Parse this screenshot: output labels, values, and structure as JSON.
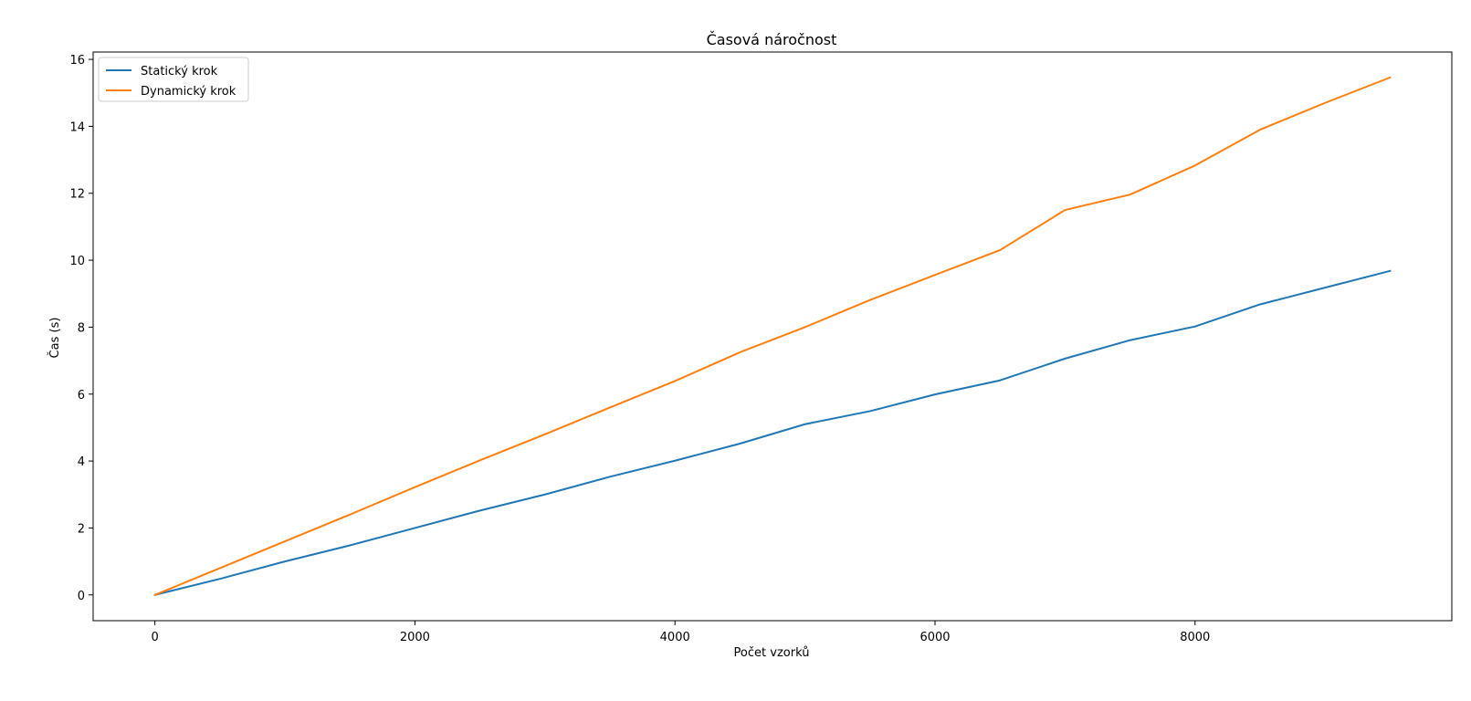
{
  "chart_data": {
    "type": "line",
    "title": "Časová náročnost",
    "xlabel": "Počet vzorků",
    "ylabel": "Čas (s)",
    "xlim": [
      -475,
      9975
    ],
    "ylim": [
      -0.77,
      16.22
    ],
    "xticks": [
      0,
      2000,
      4000,
      6000,
      8000
    ],
    "yticks": [
      0,
      2,
      4,
      6,
      8,
      10,
      12,
      14,
      16
    ],
    "grid": false,
    "legend_position": "top-left",
    "series": [
      {
        "name": "Statický krok",
        "color": "#1f77b4",
        "x": [
          0,
          500,
          1000,
          1500,
          2000,
          2500,
          3000,
          3500,
          4000,
          4500,
          5000,
          5500,
          6000,
          6500,
          7000,
          7500,
          8000,
          8500,
          9000,
          9500
        ],
        "y": [
          0,
          0.48,
          1.0,
          1.48,
          2.0,
          2.52,
          3.0,
          3.53,
          4.01,
          4.52,
          5.1,
          5.49,
          5.99,
          6.41,
          7.06,
          7.61,
          8.02,
          8.68,
          9.18,
          9.68
        ]
      },
      {
        "name": "Dynamický krok",
        "color": "#ff7f0e",
        "x": [
          0,
          500,
          1000,
          1500,
          2000,
          2500,
          3000,
          3500,
          4000,
          4500,
          5000,
          5500,
          6000,
          6500,
          7000,
          7500,
          8000,
          8500,
          9000,
          9500
        ],
        "y": [
          0,
          0.8,
          1.6,
          2.4,
          3.22,
          4.02,
          4.8,
          5.6,
          6.39,
          7.25,
          8.0,
          8.81,
          9.56,
          10.3,
          11.5,
          11.96,
          12.83,
          13.9,
          14.7,
          15.46
        ]
      }
    ]
  }
}
